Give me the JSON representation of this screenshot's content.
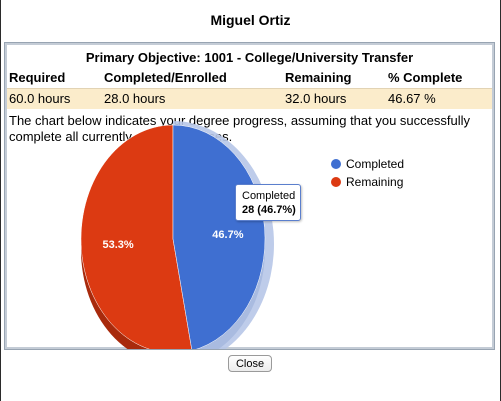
{
  "dialog": {
    "title": "Miguel Ortiz",
    "close_label": "Close"
  },
  "objective": {
    "title": "Primary Objective: 1001 - College/University Transfer",
    "headers": [
      "Required",
      "Completed/Enrolled",
      "Remaining",
      "% Complete"
    ],
    "values": [
      "60.0 hours",
      "28.0 hours",
      "32.0 hours",
      "46.67 %"
    ]
  },
  "description": "The chart below indicates your degree progress, assuming that you successfully complete all currently enrolled classes.",
  "chart_data": {
    "type": "pie",
    "series": [
      {
        "name": "Completed",
        "value": 46.7,
        "label": "46.7%",
        "color": "#3f6fd1"
      },
      {
        "name": "Remaining",
        "value": 53.3,
        "label": "53.3%",
        "color": "#dc3a12"
      }
    ],
    "legend_placement": "top-right",
    "tooltip": {
      "series": "Completed",
      "title": "Completed",
      "value": "28 (46.7%)"
    }
  },
  "colors": {
    "completed_dark": "#2b4f9c",
    "remaining_dark": "#a82a0c",
    "highlight": "#b7c7e8"
  }
}
